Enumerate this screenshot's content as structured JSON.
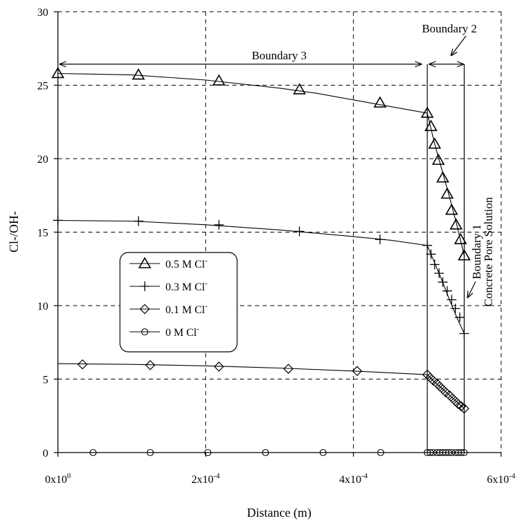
{
  "chart_data": {
    "type": "line",
    "title": "",
    "xlabel": "Distance (m)",
    "ylabel": "Cl-/OH-",
    "xlim": [
      0,
      0.0006
    ],
    "ylim": [
      0,
      30
    ],
    "x_ticks": [
      0,
      0.0002,
      0.0004,
      0.0006
    ],
    "x_tick_labels": [
      {
        "base": "0x10",
        "exp": "0"
      },
      {
        "base": "2x10",
        "exp": "-4"
      },
      {
        "base": "4x10",
        "exp": "-4"
      },
      {
        "base": "6x10",
        "exp": "-4"
      }
    ],
    "y_ticks": [
      0,
      5,
      10,
      15,
      20,
      25,
      30
    ],
    "y_tick_labels": [
      "0",
      "5",
      "10",
      "15",
      "20",
      "25",
      "30"
    ],
    "grid": true,
    "legend_position": "center-left",
    "boundaries_x": [
      0.0005,
      0.00055
    ],
    "annotations": {
      "boundary3": "Boundary 3",
      "boundary2": "Boundary 2",
      "boundary1": "Boundary 1",
      "pore_solution": "Concrete Pore Solution"
    },
    "series": [
      {
        "name": "0.5 M Cl-",
        "legend_text": "0.5 M Cl",
        "marker": "triangle",
        "curve": [
          [
            0,
            25.8
          ],
          [
            0.0001,
            25.7
          ],
          [
            0.0002,
            25.35
          ],
          [
            0.0003,
            24.8
          ],
          [
            0.00035,
            24.45
          ],
          [
            0.0004,
            24.0
          ],
          [
            0.00045,
            23.55
          ],
          [
            0.0005,
            23.1
          ],
          [
            0.00051,
            21.0
          ],
          [
            0.00052,
            19.2
          ],
          [
            0.00053,
            17.4
          ],
          [
            0.00054,
            15.5
          ],
          [
            0.00055,
            13.4
          ]
        ],
        "markers": [
          [
            0,
            25.8
          ],
          [
            0.000109,
            25.7
          ],
          [
            0.000218,
            25.3
          ],
          [
            0.000327,
            24.7
          ],
          [
            0.000436,
            23.8
          ],
          [
            0.0005,
            23.1
          ],
          [
            0.000505,
            22.2
          ],
          [
            0.00051,
            21.0
          ],
          [
            0.000515,
            19.9
          ],
          [
            0.000521,
            18.7
          ],
          [
            0.000527,
            17.6
          ],
          [
            0.000533,
            16.5
          ],
          [
            0.000539,
            15.5
          ],
          [
            0.000545,
            14.5
          ],
          [
            0.00055,
            13.4
          ]
        ]
      },
      {
        "name": "0.3 M Cl-",
        "legend_text": "0.3 M Cl",
        "marker": "plus",
        "curve": [
          [
            0,
            15.8
          ],
          [
            0.0001,
            15.75
          ],
          [
            0.0002,
            15.5
          ],
          [
            0.0003,
            15.15
          ],
          [
            0.0004,
            14.7
          ],
          [
            0.00045,
            14.45
          ],
          [
            0.0005,
            14.1
          ],
          [
            0.00051,
            12.9
          ],
          [
            0.00052,
            11.7
          ],
          [
            0.00053,
            10.4
          ],
          [
            0.00054,
            9.2
          ],
          [
            0.00055,
            8.1
          ]
        ],
        "markers": [
          [
            0,
            15.8
          ],
          [
            0.000109,
            15.75
          ],
          [
            0.000218,
            15.5
          ],
          [
            0.000327,
            15.05
          ],
          [
            0.000436,
            14.5
          ],
          [
            0.0005,
            14.1
          ],
          [
            0.000505,
            13.5
          ],
          [
            0.00051,
            12.8
          ],
          [
            0.000516,
            12.2
          ],
          [
            0.000521,
            11.6
          ],
          [
            0.000527,
            11.0
          ],
          [
            0.000533,
            10.4
          ],
          [
            0.000538,
            9.8
          ],
          [
            0.000544,
            9.2
          ],
          [
            0.00055,
            8.1
          ]
        ]
      },
      {
        "name": "0.1 M Cl-",
        "legend_text": "0.1 M Cl",
        "marker": "diamond",
        "curve": [
          [
            0,
            6.05
          ],
          [
            0.0001,
            6.0
          ],
          [
            0.0002,
            5.9
          ],
          [
            0.0003,
            5.75
          ],
          [
            0.0004,
            5.55
          ],
          [
            0.0005,
            5.3
          ],
          [
            0.00051,
            4.8
          ],
          [
            0.00052,
            4.35
          ],
          [
            0.00053,
            3.9
          ],
          [
            0.00054,
            3.45
          ],
          [
            0.00055,
            3.0
          ]
        ],
        "markers": [
          [
            3.33e-05,
            6.0
          ],
          [
            0.000125,
            5.95
          ],
          [
            0.000218,
            5.85
          ],
          [
            0.000312,
            5.7
          ],
          [
            0.000405,
            5.55
          ],
          [
            0.0005,
            5.3
          ],
          [
            0.000504,
            5.1
          ],
          [
            0.000508,
            4.9
          ],
          [
            0.000513,
            4.7
          ],
          [
            0.000517,
            4.5
          ],
          [
            0.000521,
            4.3
          ],
          [
            0.000525,
            4.1
          ],
          [
            0.00053,
            3.9
          ],
          [
            0.000534,
            3.7
          ],
          [
            0.000538,
            3.5
          ],
          [
            0.000542,
            3.3
          ],
          [
            0.000546,
            3.15
          ],
          [
            0.00055,
            3.0
          ]
        ]
      },
      {
        "name": "0  M Cl-",
        "legend_text": "0  M Cl",
        "marker": "circle",
        "curve": [
          [
            0,
            0
          ],
          [
            0.00055,
            0
          ]
        ],
        "markers": [
          [
            4.76e-05,
            0
          ],
          [
            0.000125,
            0
          ],
          [
            0.000203,
            0
          ],
          [
            0.000281,
            0
          ],
          [
            0.000359,
            0
          ],
          [
            0.000437,
            0
          ],
          [
            0.0005,
            0
          ],
          [
            0.000504,
            0
          ],
          [
            0.000508,
            0
          ],
          [
            0.000513,
            0
          ],
          [
            0.000517,
            0
          ],
          [
            0.000521,
            0
          ],
          [
            0.000525,
            0
          ],
          [
            0.000529,
            0
          ],
          [
            0.000533,
            0
          ],
          [
            0.000538,
            0
          ],
          [
            0.000542,
            0
          ],
          [
            0.000546,
            0
          ],
          [
            0.00055,
            0
          ]
        ]
      }
    ]
  }
}
